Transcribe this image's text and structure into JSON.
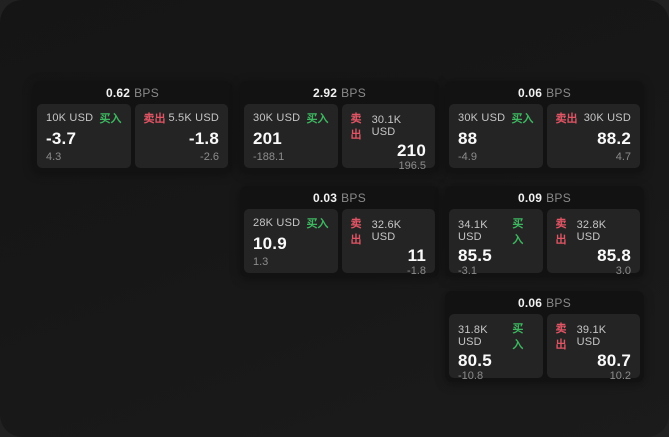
{
  "labels": {
    "buy": "买入",
    "sell": "卖出",
    "bps_unit": "BPS"
  },
  "colors": {
    "window_bg": "#171717",
    "card_bg": "#121212",
    "tile_bg": "#242424",
    "buy_green": "#3fb761",
    "sell_red": "#e05565",
    "text_primary": "#fafafa",
    "text_secondary": "#c6c6c6",
    "text_muted": "#8c8c8c"
  },
  "cards": [
    {
      "row": 1,
      "col": 1,
      "bps": "0.62",
      "buy": {
        "amount": "10K USD",
        "value": "-3.7",
        "delta": "4.3"
      },
      "sell": {
        "amount": "5.5K USD",
        "value": "-1.8",
        "delta": "-2.6"
      }
    },
    {
      "row": 1,
      "col": 2,
      "bps": "2.92",
      "buy": {
        "amount": "30K USD",
        "value": "201",
        "delta": "-188.1"
      },
      "sell": {
        "amount": "30.1K USD",
        "value": "210",
        "delta": "196.5"
      }
    },
    {
      "row": 1,
      "col": 3,
      "bps": "0.06",
      "buy": {
        "amount": "30K USD",
        "value": "88",
        "delta": "-4.9"
      },
      "sell": {
        "amount": "30K USD",
        "value": "88.2",
        "delta": "4.7"
      }
    },
    {
      "row": 2,
      "col": 2,
      "bps": "0.03",
      "buy": {
        "amount": "28K USD",
        "value": "10.9",
        "delta": "1.3"
      },
      "sell": {
        "amount": "32.6K USD",
        "value": "11",
        "delta": "-1.8"
      }
    },
    {
      "row": 2,
      "col": 3,
      "bps": "0.09",
      "buy": {
        "amount": "34.1K USD",
        "value": "85.5",
        "delta": "-3.1"
      },
      "sell": {
        "amount": "32.8K USD",
        "value": "85.8",
        "delta": "3.0"
      }
    },
    {
      "row": 3,
      "col": 3,
      "bps": "0.06",
      "buy": {
        "amount": "31.8K USD",
        "value": "80.5",
        "delta": "-10.8"
      },
      "sell": {
        "amount": "39.1K USD",
        "value": "80.7",
        "delta": "10.2"
      }
    }
  ]
}
